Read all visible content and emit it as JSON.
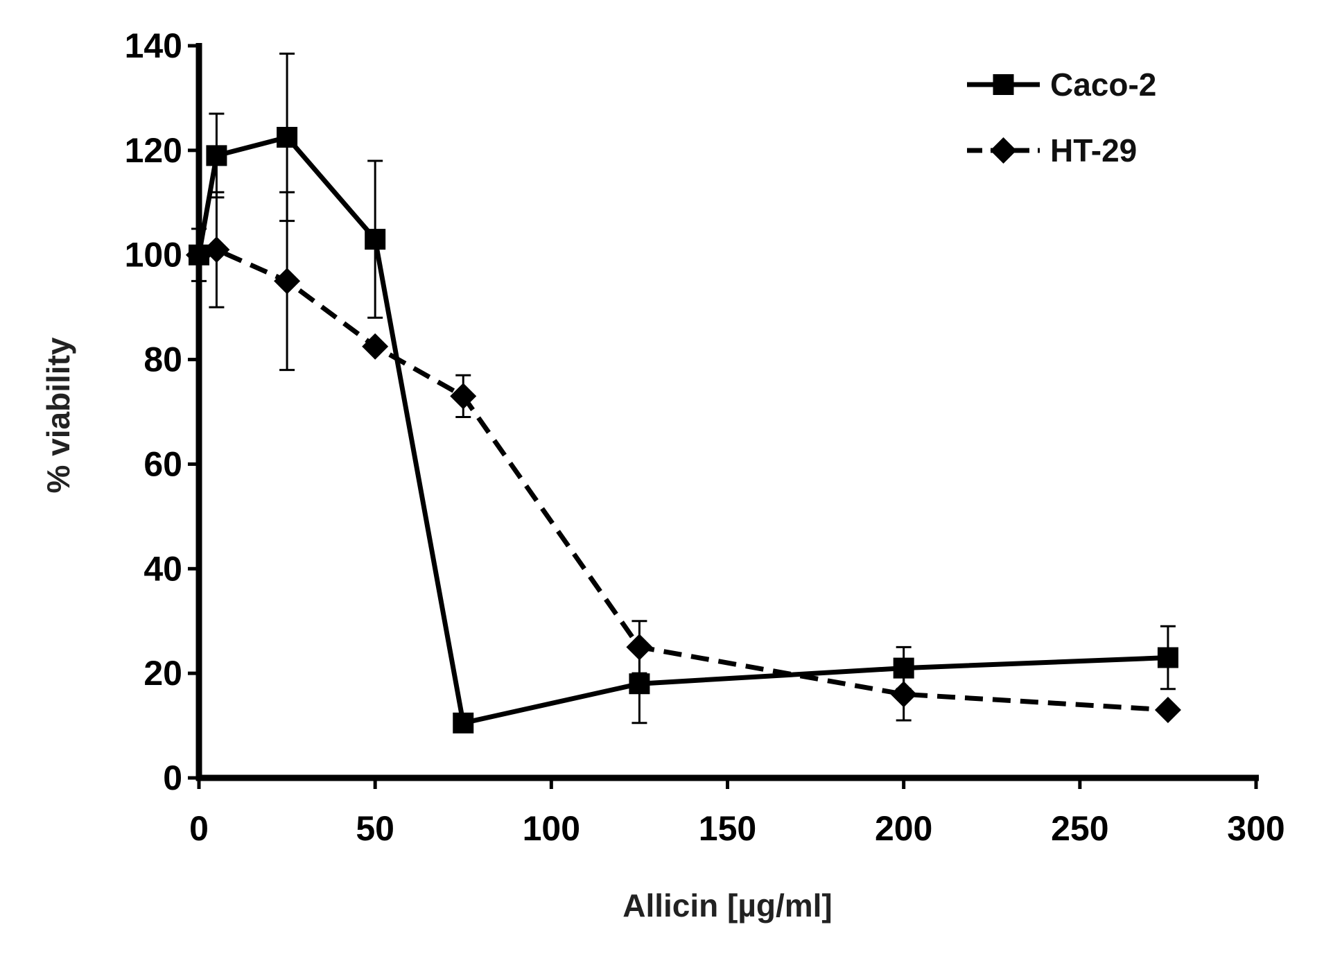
{
  "chart_data": {
    "type": "line",
    "xlabel": "Allicin [µg/ml]",
    "ylabel": "% viability",
    "xlim": [
      0,
      300
    ],
    "ylim": [
      0,
      140
    ],
    "xticks": [
      0,
      50,
      100,
      150,
      200,
      250,
      300
    ],
    "yticks": [
      0,
      20,
      40,
      60,
      80,
      100,
      120,
      140
    ],
    "grid": false,
    "legend": "top-right",
    "series": [
      {
        "name": "Caco-2",
        "marker": "square",
        "line": "solid",
        "color": "#000000",
        "x": [
          0,
          5,
          25,
          50,
          75,
          125,
          200,
          275
        ],
        "y": [
          100,
          119,
          122.5,
          103,
          10.5,
          18,
          21,
          23
        ],
        "error": [
          null,
          8,
          16,
          15,
          null,
          7.5,
          4,
          6
        ]
      },
      {
        "name": "HT-29",
        "marker": "diamond",
        "line": "dashed",
        "color": "#000000",
        "x": [
          0,
          5,
          25,
          50,
          75,
          125,
          200,
          275
        ],
        "y": [
          100,
          101,
          95,
          82.5,
          73,
          25,
          16,
          13
        ],
        "error": [
          5,
          11,
          17,
          null,
          4,
          5,
          5,
          null
        ]
      }
    ]
  }
}
